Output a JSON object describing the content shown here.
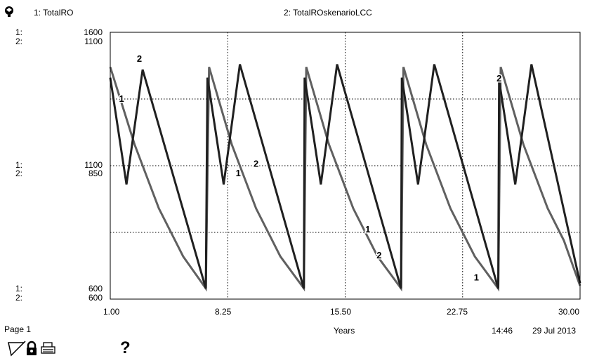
{
  "chart_data": {
    "type": "line",
    "legend": [
      {
        "id": "1",
        "label": "1: TotalRO"
      },
      {
        "id": "2",
        "label": "2: TotalROskenarioLCC"
      }
    ],
    "x_ticks": [
      "1.00",
      "8.25",
      "15.50",
      "22.75",
      "30.00"
    ],
    "xlabel": "Years",
    "xlim": [
      1.0,
      30.0
    ],
    "y_axes": [
      {
        "series": "1",
        "ylim": [
          600,
          1600
        ],
        "tick_labels": {
          "top": "1600",
          "mid": "1100",
          "bottom": "600"
        }
      },
      {
        "series": "2",
        "ylim": [
          600,
          1100
        ],
        "tick_labels": {
          "top": "1100",
          "mid": "850",
          "bottom": "600"
        }
      }
    ],
    "axis_prefix": {
      "one": "1:",
      "two": "2:"
    },
    "grid": true,
    "series": [
      {
        "name": "1: TotalRO",
        "color": "#606060",
        "x": [
          1.0,
          2.5,
          4.0,
          5.5,
          6.9,
          7.1,
          8.5,
          10.0,
          11.5,
          12.95,
          13.1,
          14.5,
          16.0,
          17.5,
          18.95,
          19.1,
          20.5,
          22.0,
          23.5,
          24.95,
          25.1,
          26.5,
          28.0,
          29.0,
          30.0
        ],
        "y": [
          1470,
          1180,
          940,
          760,
          640,
          1470,
          1180,
          940,
          760,
          640,
          1470,
          1180,
          940,
          760,
          640,
          1470,
          1180,
          940,
          760,
          640,
          1470,
          1180,
          940,
          820,
          650
        ]
      },
      {
        "name": "2: TotalROskenarioLCC",
        "color": "#202020",
        "x": [
          1.0,
          2.0,
          3.0,
          6.9,
          7.0,
          8.0,
          9.0,
          12.95,
          13.0,
          14.0,
          15.0,
          18.95,
          19.0,
          20.0,
          21.0,
          24.95,
          25.0,
          26.0,
          27.0,
          30.0
        ],
        "y": [
          1015,
          815,
          1030,
          620,
          1015,
          815,
          1040,
          620,
          1015,
          815,
          1040,
          620,
          1015,
          815,
          1040,
          620,
          1010,
          815,
          1040,
          630
        ]
      }
    ],
    "series_markers": [
      {
        "series": "1",
        "text": "1",
        "at": [
          1.7,
          1340
        ]
      },
      {
        "series": "1",
        "text": "1",
        "at": [
          8.9,
          1060
        ]
      },
      {
        "series": "1",
        "text": "1",
        "at": [
          16.9,
          850
        ]
      },
      {
        "series": "1",
        "text": "1",
        "at": [
          23.6,
          670
        ]
      },
      {
        "series": "2",
        "text": "2",
        "at": [
          2.8,
          1045
        ]
      },
      {
        "series": "2",
        "text": "2",
        "at": [
          10.0,
          848
        ]
      },
      {
        "series": "2",
        "text": "2",
        "at": [
          17.6,
          676
        ]
      },
      {
        "series": "2",
        "text": "2",
        "at": [
          25.0,
          1008
        ]
      }
    ]
  },
  "footer": {
    "page_label": "Page 1",
    "time": "14:46",
    "date": "29 Jul 2013"
  },
  "toolbar": {
    "pen_icon": "pen-icon",
    "lock_icon": "lock-icon",
    "print_icon": "print-icon",
    "help_label": "?"
  }
}
